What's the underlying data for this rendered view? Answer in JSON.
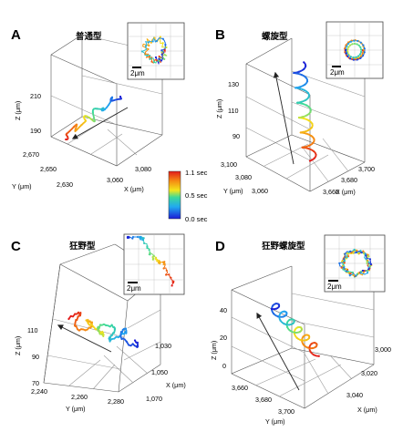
{
  "colors": {
    "cb_red": "#e21a1a",
    "cb_yellow": "#f4e51b",
    "cb_cyan": "#21c6e8",
    "cb_blue": "#1b1bd6"
  },
  "colorbar": {
    "labels": [
      "1.1 sec",
      "0.5 sec",
      "0.0 sec"
    ]
  },
  "panels": [
    {
      "label": "A",
      "title": "普通型",
      "scale": "2μm",
      "ticks": {
        "z": [
          "210",
          "190"
        ],
        "y": [
          "2,670",
          "2,650",
          "2,630"
        ],
        "x": [
          "3,080",
          "3,060"
        ]
      },
      "axes": {
        "z": "Z (μm)",
        "y": "Y (μm)",
        "x": "X (μm)"
      }
    },
    {
      "label": "B",
      "title": "螺旋型",
      "scale": "2μm",
      "ticks": {
        "z": [
          "130",
          "110",
          "90"
        ],
        "y": [
          "3,100",
          "3,080",
          "3,060"
        ],
        "x": [
          "3,700",
          "3,680",
          "3,660"
        ]
      },
      "axes": {
        "z": "Z (μm)",
        "y": "Y (μm)",
        "x": "X (μm)"
      }
    },
    {
      "label": "C",
      "title": "狂野型",
      "scale": "2μm",
      "ticks": {
        "z": [
          "110",
          "90",
          "70"
        ],
        "y": [
          "2,240",
          "2,260",
          "2,280"
        ],
        "x": [
          "1,030",
          "1,050",
          "1,070"
        ]
      },
      "axes": {
        "z": "Z (μm)",
        "y": "Y (μm)",
        "x": "X (μm)"
      }
    },
    {
      "label": "D",
      "title": "狂野螺旋型",
      "scale": "2μm",
      "ticks": {
        "z": [
          "40",
          "20",
          "0"
        ],
        "y": [
          "3,660",
          "3,680",
          "3,700"
        ],
        "x": [
          "3,000",
          "3,020",
          "3,040"
        ]
      },
      "axes": {
        "z": "Z (μm)",
        "y": "Y (μm)",
        "x": "X (μm)"
      }
    }
  ]
}
